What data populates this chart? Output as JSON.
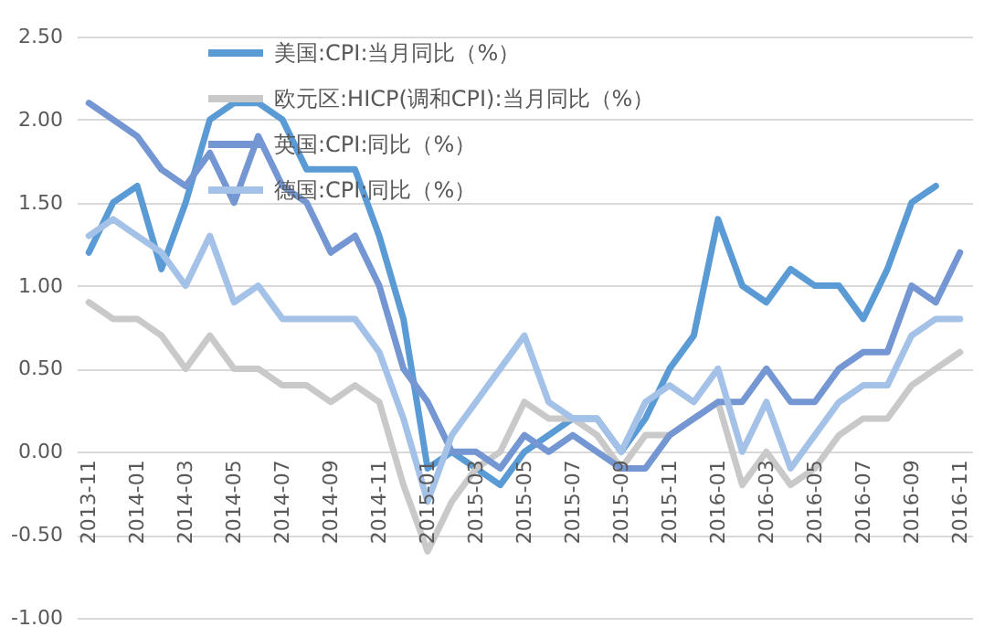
{
  "chart_data": {
    "type": "line",
    "categories": [
      "2013-11",
      null,
      "2014-01",
      null,
      "2014-03",
      null,
      "2014-05",
      null,
      "2014-07",
      null,
      "2014-09",
      null,
      "2014-11",
      null,
      "2015-01",
      null,
      "2015-03",
      null,
      "2015-05",
      null,
      "2015-07",
      null,
      "2015-09",
      null,
      "2015-11",
      null,
      "2016-01",
      null,
      "2016-03",
      null,
      "2016-05",
      null,
      "2016-07",
      null,
      "2016-09",
      null,
      "2016-11"
    ],
    "series": [
      {
        "name": "美国:CPI:当月同比（%）",
        "color": "#5b9bd5",
        "values": [
          1.2,
          1.5,
          1.6,
          1.1,
          1.5,
          2.0,
          2.1,
          2.1,
          2.0,
          1.7,
          1.7,
          1.7,
          1.3,
          0.8,
          -0.1,
          0.0,
          -0.1,
          -0.2,
          0.0,
          0.1,
          0.2,
          0.2,
          0.0,
          0.2,
          0.5,
          0.7,
          1.4,
          1.0,
          0.9,
          1.1,
          1.0,
          1.0,
          0.8,
          1.1,
          1.5,
          1.6,
          null
        ]
      },
      {
        "name": "欧元区:HICP(调和CPI):当月同比（%）",
        "color": "#c9c9c9",
        "values": [
          0.9,
          0.8,
          0.8,
          0.7,
          0.5,
          0.7,
          0.5,
          0.5,
          0.4,
          0.4,
          0.3,
          0.4,
          0.3,
          -0.2,
          -0.6,
          -0.3,
          -0.1,
          0.0,
          0.3,
          0.2,
          0.2,
          0.1,
          -0.1,
          0.1,
          0.1,
          0.2,
          0.3,
          -0.2,
          0.0,
          -0.2,
          -0.1,
          0.1,
          0.2,
          0.2,
          0.4,
          0.5,
          0.6
        ]
      },
      {
        "name": "英国:CPI:同比（%）",
        "color": "#7496d2",
        "values": [
          2.1,
          2.0,
          1.9,
          1.7,
          1.6,
          1.8,
          1.5,
          1.9,
          1.6,
          1.5,
          1.2,
          1.3,
          1.0,
          0.5,
          0.3,
          0.0,
          0.0,
          -0.1,
          0.1,
          0.0,
          0.1,
          0.0,
          -0.1,
          -0.1,
          0.1,
          0.2,
          0.3,
          0.3,
          0.5,
          0.3,
          0.3,
          0.5,
          0.6,
          0.6,
          1.0,
          0.9,
          1.2
        ]
      },
      {
        "name": "德国:CPI:同比（%）",
        "color": "#a4c2e8",
        "values": [
          1.3,
          1.4,
          1.3,
          1.2,
          1.0,
          1.3,
          0.9,
          1.0,
          0.8,
          0.8,
          0.8,
          0.8,
          0.6,
          0.2,
          -0.3,
          0.1,
          0.3,
          0.5,
          0.7,
          0.3,
          0.2,
          0.2,
          0.0,
          0.3,
          0.4,
          0.3,
          0.5,
          0.0,
          0.3,
          -0.1,
          0.1,
          0.3,
          0.4,
          0.4,
          0.7,
          0.8,
          0.8
        ]
      }
    ],
    "ylim": [
      -1.0,
      2.5
    ],
    "yticks": [
      {
        "value": -1.0,
        "label": "-1.00"
      },
      {
        "value": -0.5,
        "label": "-0.50"
      },
      {
        "value": 0.0,
        "label": "0.00"
      },
      {
        "value": 0.5,
        "label": "0.50"
      },
      {
        "value": 1.0,
        "label": "1.00"
      },
      {
        "value": 1.5,
        "label": "1.50"
      },
      {
        "value": 2.0,
        "label": "2.00"
      },
      {
        "value": 2.5,
        "label": "2.50"
      }
    ],
    "grid": "y",
    "legend": "top",
    "marker": "none",
    "line_style": "solid"
  }
}
